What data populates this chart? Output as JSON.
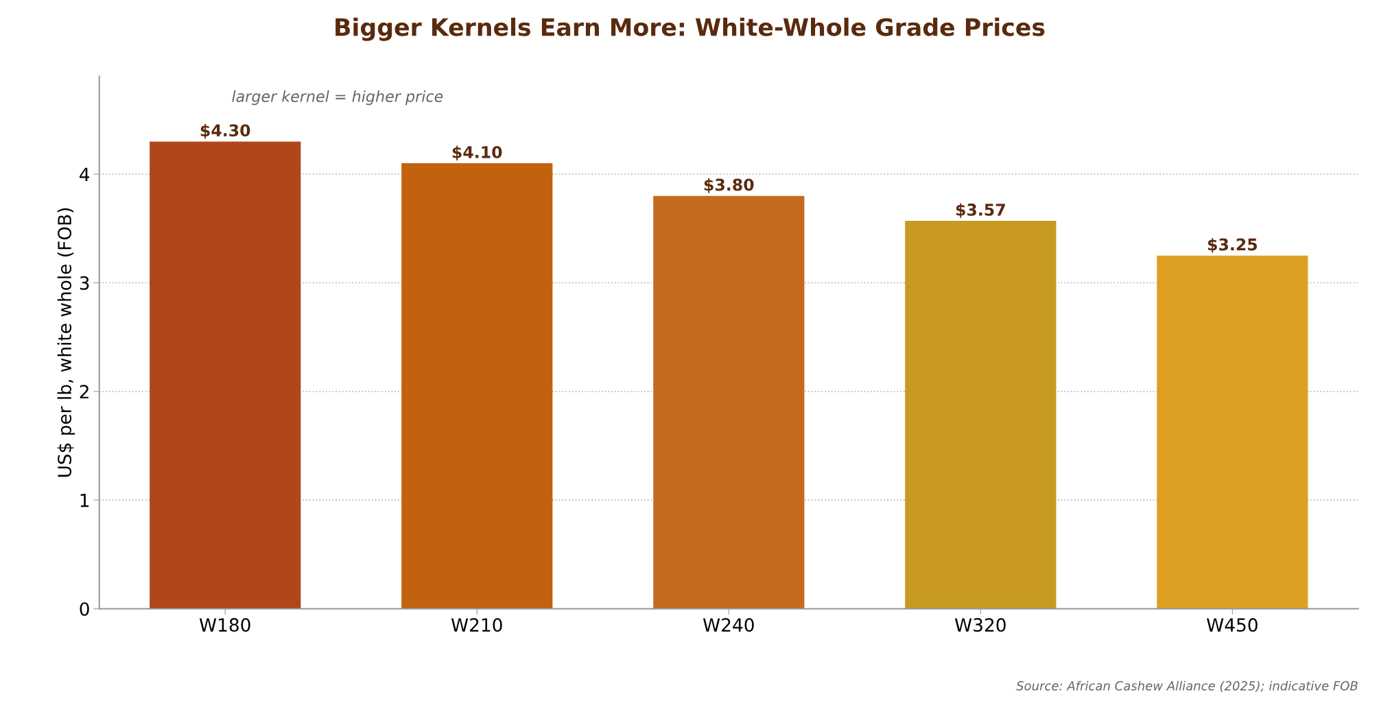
{
  "chart_data": {
    "type": "bar",
    "title": "Bigger Kernels Earn More: White-Whole Grade Prices",
    "ylabel": "US$ per lb, white whole (FOB)",
    "categories": [
      "W180",
      "W210",
      "W240",
      "W320",
      "W450"
    ],
    "values": [
      4.3,
      4.1,
      3.8,
      3.57,
      3.25
    ],
    "colors": [
      "#b0461a",
      "#c2620e",
      "#c56a1e",
      "#c89a22",
      "#dea022"
    ],
    "value_labels": [
      "$4.30",
      "$4.10",
      "$3.80",
      "$3.57",
      "$3.25"
    ],
    "ylim": [
      0,
      4.9
    ],
    "yticks": [
      0,
      1,
      2,
      3,
      4
    ],
    "grid": "y",
    "legend": false,
    "annotations": [
      "larger kernel = higher price",
      "Source: African Cashew Alliance (2025); indicative FOB"
    ]
  }
}
